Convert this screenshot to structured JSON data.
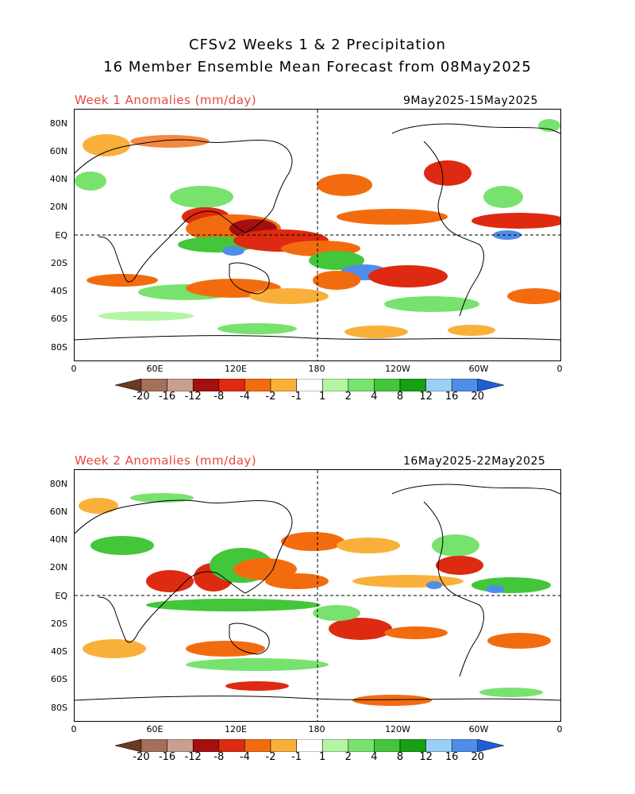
{
  "header": {
    "title_line1": "CFSv2 Weeks 1 & 2 Precipitation",
    "title_line2": "16 Member Ensemble Mean Forecast from 08May2025"
  },
  "panels": [
    {
      "label": "Week 1 Anomalies (mm/day)",
      "dates": "9May2025-15May2025"
    },
    {
      "label": "Week 2 Anomalies (mm/day)",
      "dates": "16May2025-22May2025"
    }
  ],
  "axes": {
    "lat_ticks": [
      "80N",
      "60N",
      "40N",
      "20N",
      "EQ",
      "20S",
      "40S",
      "60S",
      "80S"
    ],
    "lon_ticks": [
      "0",
      "60E",
      "120E",
      "180",
      "120W",
      "60W",
      "0"
    ]
  },
  "colorbar": {
    "labels": [
      "-20",
      "-16",
      "-12",
      "-8",
      "-4",
      "-2",
      "-1",
      "1",
      "2",
      "4",
      "8",
      "12",
      "16",
      "20"
    ],
    "colors": [
      "#6b3a1f",
      "#a5705a",
      "#c99e8f",
      "#a50f0f",
      "#dd2a10",
      "#f26c0f",
      "#f9b03b",
      "#ffffff",
      "#b4f5a4",
      "#78e26e",
      "#43c63a",
      "#16a012",
      "#9bd0f5",
      "#4f8ee8",
      "#1f5fd6"
    ]
  }
}
